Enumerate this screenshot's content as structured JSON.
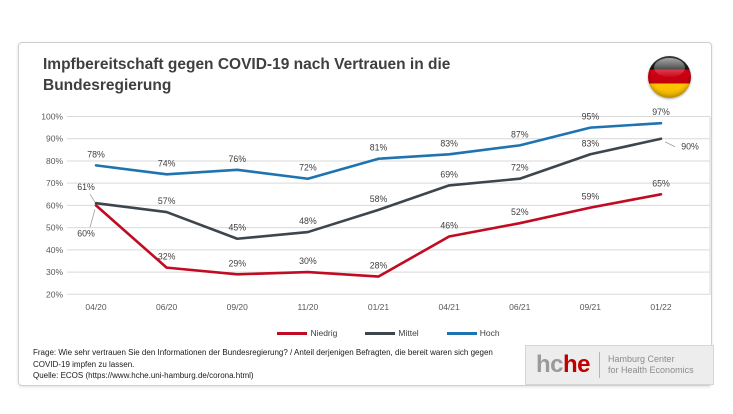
{
  "card": {
    "title_line1": "Impfbereitschaft gegen COVID-19 nach Vertrauen in die",
    "title_line2": "Bundesregierung",
    "flag_icon": "germany-flag-icon"
  },
  "chart_data": {
    "type": "line",
    "categories": [
      "04/20",
      "06/20",
      "09/20",
      "11/20",
      "01/21",
      "04/21",
      "06/21",
      "09/21",
      "01/22"
    ],
    "series": [
      {
        "name": "Niedrig",
        "color": "#c00b22",
        "values": [
          60,
          32,
          29,
          30,
          28,
          46,
          52,
          59,
          65
        ]
      },
      {
        "name": "Mittel",
        "color": "#3d464d",
        "values": [
          61,
          57,
          45,
          48,
          58,
          69,
          72,
          83,
          90
        ]
      },
      {
        "name": "Hoch",
        "color": "#1f73b1",
        "values": [
          78,
          74,
          76,
          72,
          81,
          83,
          87,
          95,
          97
        ]
      }
    ],
    "yticks": [
      "20%",
      "30%",
      "40%",
      "50%",
      "60%",
      "70%",
      "80%",
      "90%",
      "100%"
    ],
    "ylim": [
      20,
      100
    ],
    "grid": true,
    "legend_position": "bottom",
    "data_labels": true,
    "title": "Impfbereitschaft gegen COVID-19 nach Vertrauen in die Bundesregierung",
    "xlabel": "",
    "ylabel": ""
  },
  "footer": {
    "question_line1": "Frage: Wie sehr vertrauen Sie den Informationen der Bundesregierung? / Anteil derjenigen Befragten, die bereit waren sich gegen",
    "question_line2": "COVID-19 impfen zu lassen.",
    "source_line": "Quelle: ECOS (https://www.hche.uni-hamburg.de/corona.html)"
  },
  "logo": {
    "word_gray": "hc",
    "word_red": "he",
    "subtitle_line1": "Hamburg Center",
    "subtitle_line2": "for Health Economics"
  },
  "colors": {
    "grid": "#d9d9d9",
    "tick_text": "#595959",
    "data_label": "#404040",
    "leader": "#a0a0a0"
  }
}
